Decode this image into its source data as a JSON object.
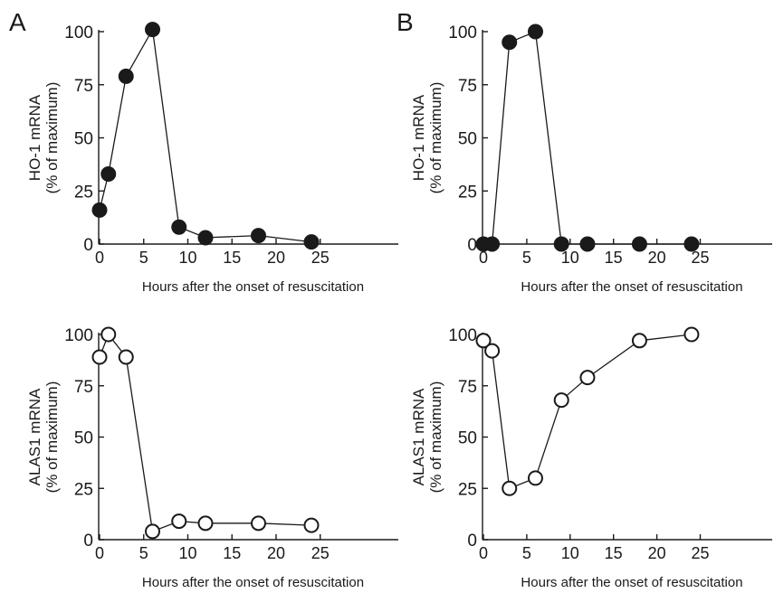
{
  "panel_labels": [
    "A",
    "B"
  ],
  "chart_data": [
    {
      "type": "line",
      "panel": "A",
      "marker": "filled-circle",
      "ylabel_line1": "HO-1  mRNA",
      "ylabel_line2": "(% of maximum)",
      "xlabel": "Hours after the onset of resuscitation",
      "xlim": [
        0,
        28
      ],
      "ylim": [
        0,
        100
      ],
      "xticks": [
        0,
        5,
        10,
        15,
        20,
        25
      ],
      "yticks": [
        0,
        25,
        50,
        75,
        100
      ],
      "x": [
        0,
        1,
        3,
        6,
        9,
        12,
        18,
        24
      ],
      "y": [
        16,
        33,
        79,
        101,
        8,
        3,
        4,
        1
      ]
    },
    {
      "type": "line",
      "panel": "B",
      "marker": "filled-circle",
      "ylabel_line1": "HO-1  mRNA",
      "ylabel_line2": "(% of maximum)",
      "xlabel": "Hours after the onset of resuscitation",
      "xlim": [
        0,
        28
      ],
      "ylim": [
        0,
        100
      ],
      "xticks": [
        0,
        5,
        10,
        15,
        20,
        25
      ],
      "yticks": [
        0,
        25,
        50,
        75,
        100
      ],
      "x": [
        0,
        1,
        3,
        6,
        9,
        12,
        18,
        24
      ],
      "y": [
        0,
        0,
        95,
        100,
        0,
        0,
        0,
        0
      ]
    },
    {
      "type": "line",
      "panel": "A",
      "marker": "open-circle",
      "ylabel_line1": "ALAS1 mRNA",
      "ylabel_line2": "(% of maximum)",
      "xlabel": "Hours after the onset of resuscitation",
      "xlim": [
        0,
        28
      ],
      "ylim": [
        0,
        100
      ],
      "xticks": [
        0,
        5,
        10,
        15,
        20,
        25
      ],
      "yticks": [
        0,
        25,
        50,
        75,
        100
      ],
      "x": [
        0,
        1,
        3,
        6,
        9,
        12,
        18,
        24
      ],
      "y": [
        89,
        100,
        89,
        4,
        9,
        8,
        8,
        7
      ]
    },
    {
      "type": "line",
      "panel": "B",
      "marker": "open-circle",
      "ylabel_line1": "ALAS1 mRNA",
      "ylabel_line2": "(% of maximum)",
      "xlabel": "Hours after the onset of resuscitation",
      "xlim": [
        0,
        28
      ],
      "ylim": [
        0,
        100
      ],
      "xticks": [
        0,
        5,
        10,
        15,
        20,
        25
      ],
      "yticks": [
        0,
        25,
        50,
        75,
        100
      ],
      "x": [
        0,
        1,
        3,
        6,
        9,
        12,
        18,
        24
      ],
      "y": [
        97,
        92,
        25,
        30,
        68,
        79,
        97,
        100
      ]
    }
  ]
}
